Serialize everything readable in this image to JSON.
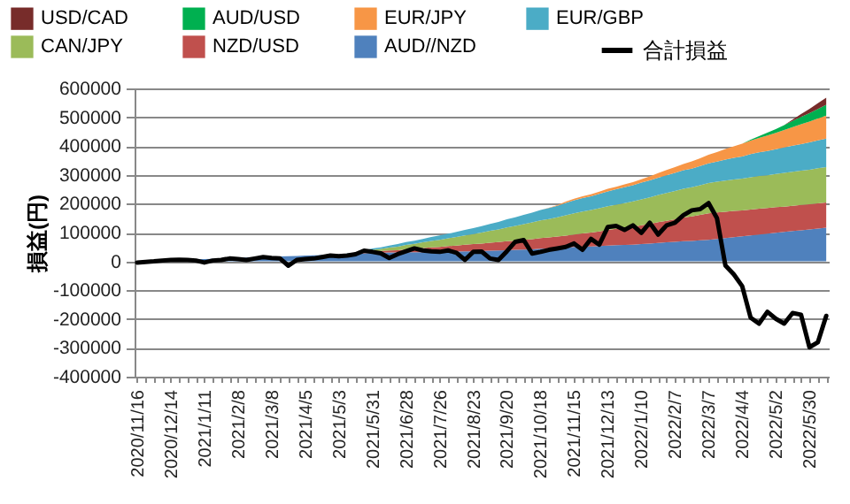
{
  "chart_data": {
    "type": "area",
    "ylabel": "損益(円)",
    "stacked": true,
    "grid": "y",
    "legend": "top",
    "ylim": [
      -400000,
      600000
    ],
    "yticks": [
      -400000,
      -300000,
      -200000,
      -100000,
      0,
      100000,
      200000,
      300000,
      400000,
      500000,
      600000
    ],
    "categories": [
      "2020/11/16",
      null,
      null,
      null,
      "2020/12/14",
      null,
      null,
      null,
      "2021/1/11",
      null,
      null,
      null,
      "2021/2/8",
      null,
      null,
      null,
      "2021/3/8",
      null,
      null,
      null,
      "2021/4/5",
      null,
      null,
      null,
      "2021/5/3",
      null,
      null,
      null,
      "2021/5/31",
      null,
      null,
      null,
      "2021/6/28",
      null,
      null,
      null,
      "2021/7/26",
      null,
      null,
      null,
      "2021/8/23",
      null,
      null,
      null,
      "2021/9/20",
      null,
      null,
      null,
      "2021/10/18",
      null,
      null,
      null,
      "2021/11/15",
      null,
      null,
      null,
      "2021/12/13",
      null,
      null,
      null,
      "2022/1/10",
      null,
      null,
      null,
      "2022/2/7",
      null,
      null,
      null,
      "2022/3/7",
      null,
      null,
      null,
      "2022/4/4",
      null,
      null,
      null,
      "2022/5/2",
      null,
      null,
      null,
      "2022/5/30",
      null,
      null
    ],
    "series": [
      {
        "name": "AUD//NZD",
        "color": "#4f81bd",
        "values": [
          0,
          1000,
          2000,
          3000,
          4000,
          5000,
          6000,
          7000,
          8000,
          9000,
          10000,
          11000,
          12000,
          13000,
          14000,
          15000,
          16000,
          17000,
          18000,
          19000,
          20000,
          21000,
          22000,
          23000,
          24000,
          25000,
          26000,
          28000,
          30000,
          30000,
          31000,
          31000,
          32000,
          32000,
          32000,
          33000,
          33000,
          34000,
          34000,
          35000,
          35000,
          36000,
          37000,
          38000,
          39000,
          40000,
          41000,
          42000,
          44000,
          45000,
          46000,
          48000,
          50000,
          51000,
          52000,
          53000,
          55000,
          56000,
          57000,
          58000,
          60000,
          62000,
          64000,
          66000,
          68000,
          70000,
          71000,
          73000,
          75000,
          78000,
          81000,
          84000,
          87000,
          90000,
          93000,
          96000,
          99000,
          102000,
          105000,
          108000,
          111000,
          114000,
          117000
        ]
      },
      {
        "name": "NZD/USD",
        "color": "#c0504d",
        "values": [
          0,
          0,
          0,
          0,
          0,
          0,
          0,
          0,
          0,
          0,
          0,
          0,
          0,
          0,
          0,
          0,
          0,
          0,
          0,
          0,
          0,
          0,
          0,
          0,
          0,
          1000,
          2000,
          4000,
          5000,
          6000,
          7000,
          8000,
          10000,
          12000,
          14000,
          16000,
          17000,
          19000,
          21000,
          23000,
          25000,
          26000,
          28000,
          29000,
          31000,
          32000,
          34000,
          35000,
          37000,
          38000,
          40000,
          41000,
          43000,
          46000,
          48000,
          51000,
          54000,
          57000,
          59000,
          62000,
          65000,
          68000,
          72000,
          75000,
          78000,
          82000,
          85000,
          88000,
          92000,
          92000,
          91000,
          91000,
          90000,
          90000,
          90000,
          89000,
          89000,
          88000,
          88000,
          88000,
          87000,
          87000,
          87000
        ]
      },
      {
        "name": "CAN/JPY",
        "color": "#9bbb59",
        "values": [
          0,
          0,
          0,
          0,
          0,
          0,
          0,
          0,
          0,
          0,
          0,
          0,
          0,
          0,
          0,
          0,
          0,
          0,
          0,
          0,
          0,
          0,
          0,
          0,
          0,
          0,
          0,
          2000,
          5000,
          7000,
          10000,
          12000,
          15000,
          17000,
          20000,
          22000,
          25000,
          27000,
          30000,
          32000,
          35000,
          38000,
          41000,
          44000,
          48000,
          51000,
          54000,
          58000,
          61000,
          64000,
          67000,
          71000,
          74000,
          76000,
          78000,
          80000,
          82000,
          84000,
          86000,
          88000,
          90000,
          92000,
          94000,
          96000,
          98000,
          100000,
          101000,
          103000,
          105000,
          106000,
          108000,
          109000,
          110000,
          112000,
          113000,
          114000,
          115000,
          117000,
          118000,
          119000,
          120000,
          122000,
          123000
        ]
      },
      {
        "name": "EUR/GBP",
        "color": "#4bacc6",
        "values": [
          0,
          0,
          0,
          0,
          0,
          0,
          0,
          0,
          0,
          0,
          0,
          0,
          0,
          0,
          0,
          0,
          0,
          0,
          0,
          0,
          0,
          0,
          0,
          0,
          0,
          1000,
          2000,
          4000,
          5000,
          6000,
          7000,
          9000,
          10000,
          11000,
          12000,
          14000,
          15000,
          16000,
          17000,
          19000,
          20000,
          22000,
          24000,
          26000,
          28000,
          30000,
          32000,
          34000,
          36000,
          38000,
          40000,
          43000,
          45000,
          47000,
          48000,
          50000,
          52000,
          53000,
          55000,
          56000,
          58000,
          59000,
          60000,
          62000,
          63000,
          64000,
          65000,
          67000,
          68000,
          70000,
          73000,
          75000,
          77000,
          80000,
          82000,
          84000,
          86000,
          88000,
          90000,
          92000,
          95000,
          97000,
          99000
        ]
      },
      {
        "name": "EUR/JPY",
        "color": "#f79646",
        "values": [
          0,
          0,
          0,
          0,
          0,
          0,
          0,
          0,
          0,
          0,
          0,
          0,
          0,
          0,
          0,
          0,
          0,
          0,
          0,
          0,
          0,
          0,
          0,
          0,
          0,
          0,
          0,
          0,
          0,
          0,
          0,
          0,
          0,
          0,
          0,
          0,
          0,
          0,
          0,
          0,
          0,
          0,
          0,
          0,
          0,
          0,
          0,
          0,
          0,
          1000,
          2000,
          4000,
          5000,
          6000,
          7000,
          8000,
          9000,
          9000,
          10000,
          11000,
          12000,
          14000,
          16000,
          18000,
          20000,
          22000,
          25000,
          27000,
          30000,
          33000,
          37000,
          40000,
          44000,
          47000,
          50000,
          54000,
          57000,
          61000,
          65000,
          69000,
          72000,
          76000,
          80000
        ]
      },
      {
        "name": "AUD/USD",
        "color": "#00b050",
        "values": [
          0,
          0,
          0,
          0,
          0,
          0,
          0,
          0,
          0,
          0,
          0,
          0,
          0,
          0,
          0,
          0,
          0,
          0,
          0,
          0,
          0,
          0,
          0,
          0,
          0,
          0,
          0,
          0,
          0,
          0,
          0,
          0,
          0,
          0,
          0,
          0,
          0,
          0,
          0,
          0,
          0,
          0,
          0,
          0,
          0,
          0,
          0,
          0,
          0,
          0,
          0,
          0,
          0,
          0,
          0,
          0,
          0,
          0,
          0,
          0,
          0,
          0,
          0,
          0,
          0,
          0,
          0,
          0,
          0,
          0,
          0,
          0,
          0,
          3000,
          6000,
          10000,
          13000,
          17000,
          21000,
          25000,
          29000,
          33000,
          37000
        ]
      },
      {
        "name": "USD/CAD",
        "color": "#772c2a",
        "values": [
          0,
          0,
          0,
          0,
          0,
          0,
          0,
          0,
          0,
          0,
          0,
          0,
          0,
          0,
          0,
          0,
          0,
          0,
          0,
          0,
          0,
          0,
          0,
          0,
          0,
          0,
          0,
          0,
          0,
          0,
          0,
          0,
          0,
          0,
          0,
          0,
          0,
          0,
          0,
          0,
          0,
          0,
          0,
          0,
          0,
          0,
          0,
          0,
          0,
          0,
          0,
          0,
          0,
          0,
          0,
          0,
          0,
          0,
          0,
          0,
          0,
          0,
          0,
          0,
          0,
          0,
          0,
          0,
          0,
          0,
          0,
          0,
          0,
          0,
          0,
          0,
          0,
          0,
          5000,
          10000,
          15000,
          20000,
          25000
        ]
      },
      {
        "name": "合計損益",
        "type": "line",
        "color": "#000000",
        "values": [
          -4000,
          -2000,
          0,
          3000,
          5000,
          6000,
          5000,
          3000,
          -4000,
          3000,
          5000,
          10000,
          8000,
          5000,
          10000,
          15000,
          12000,
          10000,
          -15000,
          5000,
          8000,
          10000,
          15000,
          20000,
          18000,
          20000,
          25000,
          37000,
          33000,
          28000,
          12000,
          25000,
          35000,
          45000,
          38000,
          35000,
          33000,
          38000,
          30000,
          5000,
          33000,
          34000,
          10000,
          5000,
          35000,
          68000,
          74000,
          27000,
          33000,
          40000,
          45000,
          50000,
          62000,
          40000,
          78000,
          58000,
          119000,
          123000,
          109000,
          125000,
          99000,
          134000,
          93000,
          125000,
          134000,
          160000,
          177000,
          181000,
          202000,
          150000,
          -14000,
          -45000,
          -86000,
          -195000,
          -216000,
          -175000,
          -199000,
          -216000,
          -179000,
          -185000,
          -298000,
          -281000,
          -189000
        ]
      }
    ]
  }
}
